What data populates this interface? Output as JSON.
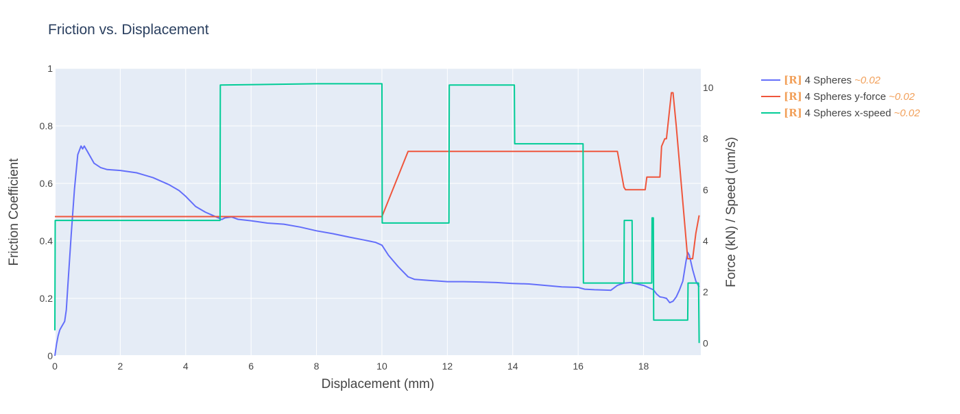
{
  "chart_data": {
    "type": "line",
    "title": "Friction vs. Displacement",
    "xlabel": "Displacement (mm)",
    "ylabel_left": "Friction Coefficient",
    "ylabel_right": "Force (kN) / Speed (um/s)",
    "xlim": [
      0,
      19.75
    ],
    "ylim_left": [
      0,
      1
    ],
    "ylim_right": [
      -0.5,
      10.75
    ],
    "x_ticks": [
      0,
      2,
      4,
      6,
      8,
      10,
      12,
      14,
      16,
      18
    ],
    "x_tick_labels": [
      "0",
      "2",
      "4",
      "6",
      "8",
      "10",
      "12",
      "14",
      "16",
      "18"
    ],
    "y_left_ticks": [
      0,
      0.2,
      0.4,
      0.6,
      0.8,
      1
    ],
    "y_left_tick_labels": [
      "0",
      "0.2",
      "0.4",
      "0.6",
      "0.8",
      "1"
    ],
    "y_right_ticks": [
      0,
      2,
      4,
      6,
      8,
      10
    ],
    "y_right_tick_labels": [
      "0",
      "2",
      "4",
      "6",
      "8",
      "10"
    ],
    "grid": true,
    "legend_position": "right",
    "series": [
      {
        "name": "4 Spheres",
        "tag": "[R]",
        "approx": "~0.02",
        "color": "#636efa",
        "axis": "left",
        "x": [
          0,
          0.05,
          0.1,
          0.15,
          0.2,
          0.3,
          0.35,
          0.4,
          0.5,
          0.6,
          0.7,
          0.8,
          0.85,
          0.9,
          0.95,
          1.0,
          1.1,
          1.2,
          1.4,
          1.6,
          2.0,
          2.5,
          3.0,
          3.5,
          3.8,
          4.0,
          4.3,
          4.6,
          4.8,
          5.0,
          5.1,
          5.2,
          5.4,
          5.6,
          6.0,
          6.5,
          7.0,
          7.5,
          8.0,
          8.5,
          9.0,
          9.5,
          9.8,
          10.0,
          10.2,
          10.5,
          10.8,
          11.0,
          11.5,
          12.0,
          12.5,
          13.0,
          13.5,
          14.0,
          14.5,
          15.0,
          15.5,
          16.0,
          16.2,
          16.5,
          17.0,
          17.2,
          17.4,
          17.6,
          17.8,
          18.0,
          18.1,
          18.2,
          18.3,
          18.4,
          18.5,
          18.6,
          18.7,
          18.8,
          18.9,
          19.0,
          19.1,
          19.2,
          19.3,
          19.35,
          19.4,
          19.5,
          19.6,
          19.7
        ],
        "y": [
          0.0,
          0.04,
          0.07,
          0.09,
          0.1,
          0.12,
          0.16,
          0.25,
          0.42,
          0.58,
          0.7,
          0.73,
          0.72,
          0.73,
          0.72,
          0.71,
          0.69,
          0.67,
          0.655,
          0.648,
          0.645,
          0.637,
          0.62,
          0.595,
          0.575,
          0.555,
          0.52,
          0.5,
          0.49,
          0.48,
          0.474,
          0.48,
          0.483,
          0.475,
          0.47,
          0.462,
          0.458,
          0.448,
          0.435,
          0.425,
          0.413,
          0.402,
          0.395,
          0.385,
          0.35,
          0.31,
          0.275,
          0.266,
          0.262,
          0.258,
          0.258,
          0.257,
          0.255,
          0.252,
          0.25,
          0.245,
          0.24,
          0.238,
          0.232,
          0.23,
          0.228,
          0.245,
          0.253,
          0.255,
          0.25,
          0.245,
          0.24,
          0.235,
          0.23,
          0.215,
          0.205,
          0.203,
          0.2,
          0.185,
          0.19,
          0.205,
          0.23,
          0.26,
          0.33,
          0.36,
          0.35,
          0.3,
          0.26,
          0.24
        ]
      },
      {
        "name": "4 Spheres y-force",
        "tag": "[R]",
        "approx": "~0.02",
        "color": "#ef553b",
        "axis": "right",
        "x": [
          0,
          10.0,
          10.8,
          17.2,
          17.4,
          17.45,
          18.05,
          18.1,
          18.5,
          18.55,
          18.65,
          18.7,
          18.85,
          18.9,
          19.0,
          19.35,
          19.4,
          19.5,
          19.6,
          19.7
        ],
        "y": [
          4.95,
          4.95,
          7.5,
          7.5,
          6.1,
          6.0,
          6.0,
          6.5,
          6.5,
          7.7,
          8.0,
          8.0,
          9.8,
          9.8,
          8.5,
          3.3,
          3.3,
          3.3,
          4.3,
          5.0
        ]
      },
      {
        "name": "4 Spheres x-speed",
        "tag": "[R]",
        "approx": "~0.02",
        "color": "#00cc96",
        "axis": "right",
        "x": [
          0,
          0.01,
          2.2,
          5.05,
          5.06,
          8.0,
          10.0,
          10.01,
          12.05,
          12.06,
          14.05,
          14.06,
          16.15,
          16.16,
          17.4,
          17.41,
          17.65,
          17.66,
          18.25,
          18.26,
          18.3,
          18.31,
          19.35,
          19.36,
          19.68,
          19.7
        ],
        "y": [
          0.5,
          4.8,
          4.8,
          4.8,
          10.1,
          10.15,
          10.15,
          4.7,
          4.7,
          10.1,
          10.1,
          7.8,
          7.8,
          2.35,
          2.35,
          4.8,
          4.8,
          2.35,
          2.35,
          4.9,
          4.9,
          0.9,
          0.9,
          2.35,
          2.35,
          0.0
        ]
      }
    ]
  }
}
